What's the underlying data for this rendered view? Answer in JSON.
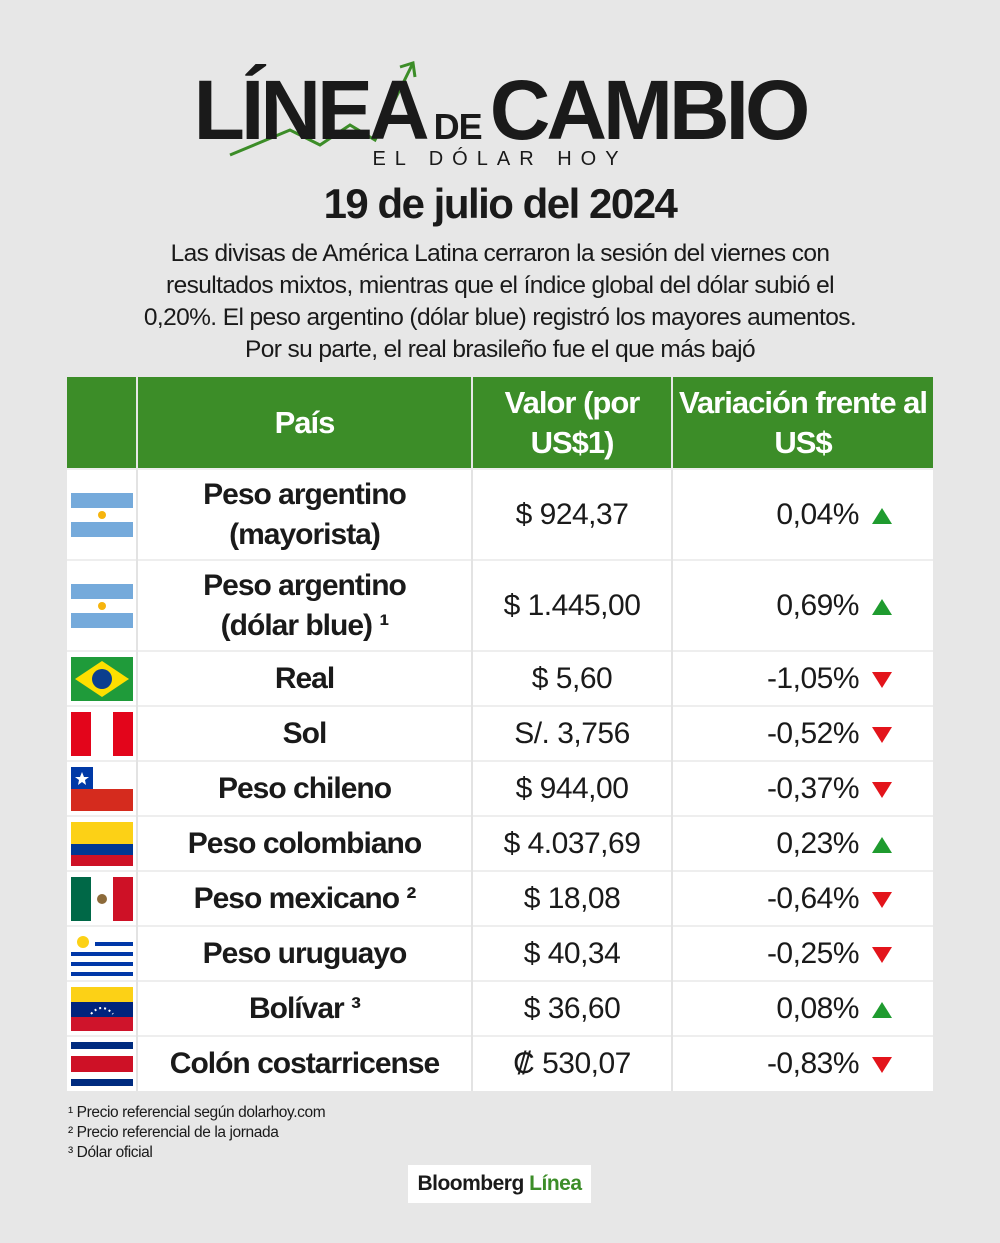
{
  "header": {
    "title_left": "LÍNEA",
    "title_mid": "DE",
    "title_right": "CAMBIO",
    "subtitle": "EL DÓLAR HOY",
    "date": "19 de julio del 2024",
    "intro": "Las divisas de América Latina cerraron la sesión del viernes con resultados mixtos, mientras que el índice global del dólar subió el 0,20%. El peso argentino (dólar blue) registró los mayores aumentos. Por su parte, el real brasileño fue el que más bajó"
  },
  "table": {
    "columns": [
      "País",
      "Valor (por US$1)",
      "Variación frente al US$"
    ],
    "rows": [
      [
        "Peso argentino (mayorista)",
        "$ 924,37",
        "0,04%"
      ],
      [
        "Peso argentino (dólar blue) ¹",
        "$ 1.445,00",
        "0,69%"
      ],
      [
        "Real",
        "$ 5,60",
        "-1,05%"
      ],
      [
        "Sol",
        "S/. 3,756",
        "-0,52%"
      ],
      [
        "Peso chileno",
        "$ 944,00",
        "-0,37%"
      ],
      [
        "Peso colombiano",
        "$ 4.037,69",
        "0,23%"
      ],
      [
        "Peso mexicano ²",
        "$ 18,08",
        "-0,64%"
      ],
      [
        "Peso uruguayo",
        "$ 40,34",
        "-0,25%"
      ],
      [
        "Bolívar ³",
        "$ 36,60",
        "0,08%"
      ],
      [
        "Colón costarricense",
        "₡ 530,07",
        "-0,83%"
      ]
    ]
  },
  "footnotes": [
    "¹ Precio referencial según dolarhoy.com",
    "² Precio referencial de la jornada",
    "³ Dólar oficial"
  ],
  "brand": {
    "left": "Bloomberg",
    "right": "Línea"
  }
}
